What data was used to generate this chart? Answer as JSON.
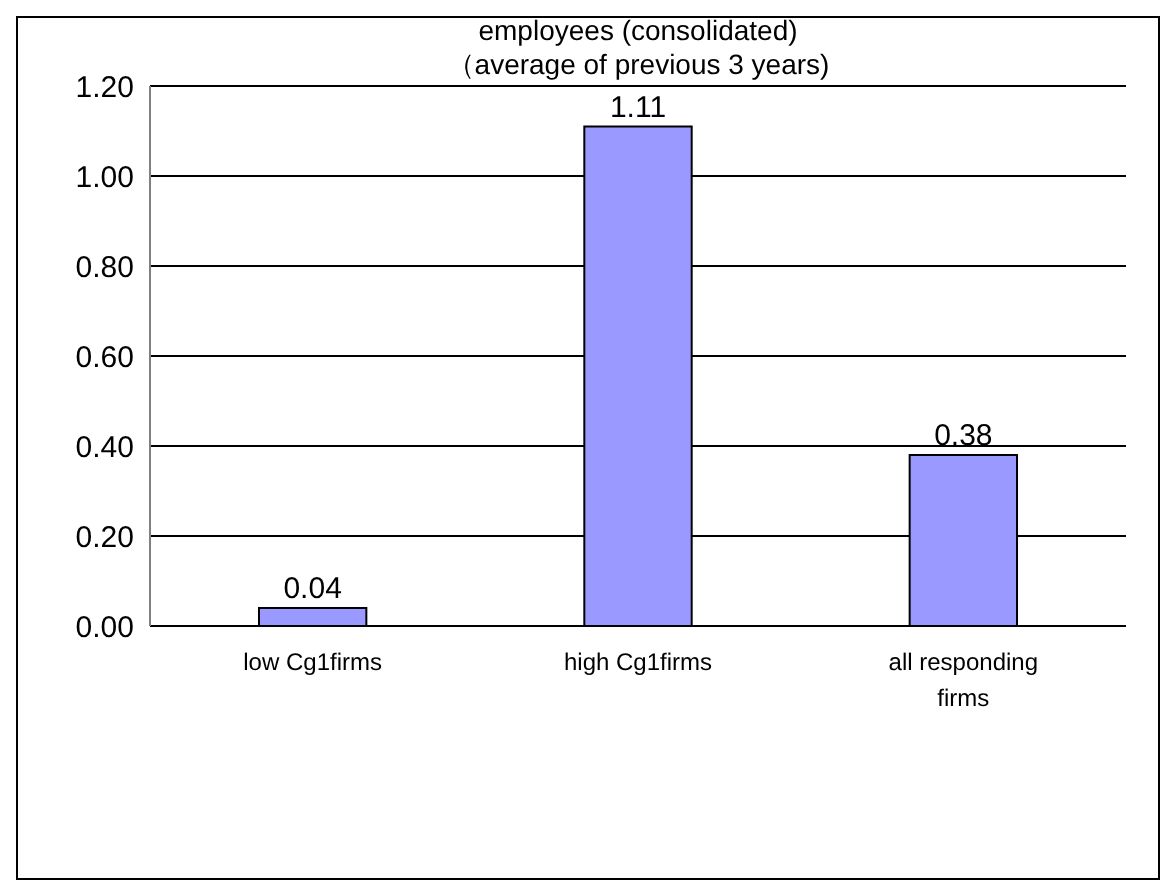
{
  "chart_data": {
    "type": "bar",
    "title": "employees (consolidated)",
    "subtitle": "（average of previous 3 years)",
    "categories": [
      "low Cg1firms",
      "high Cg1firms",
      "all responding firms"
    ],
    "values": [
      0.04,
      1.11,
      0.38
    ],
    "color": "#9999ff",
    "data_labels": true,
    "grid": "y",
    "ylim": [
      0,
      1.2
    ],
    "yticks": [
      {
        "value": 0,
        "label": "0.00"
      },
      {
        "value": 0.2,
        "label": "0.20"
      },
      {
        "value": 0.4,
        "label": "0.40"
      },
      {
        "value": 0.6,
        "label": "0.60"
      },
      {
        "value": 0.8,
        "label": "0.80"
      },
      {
        "value": 1,
        "label": "1.00"
      },
      {
        "value": 1.2,
        "label": "1.20"
      }
    ]
  }
}
